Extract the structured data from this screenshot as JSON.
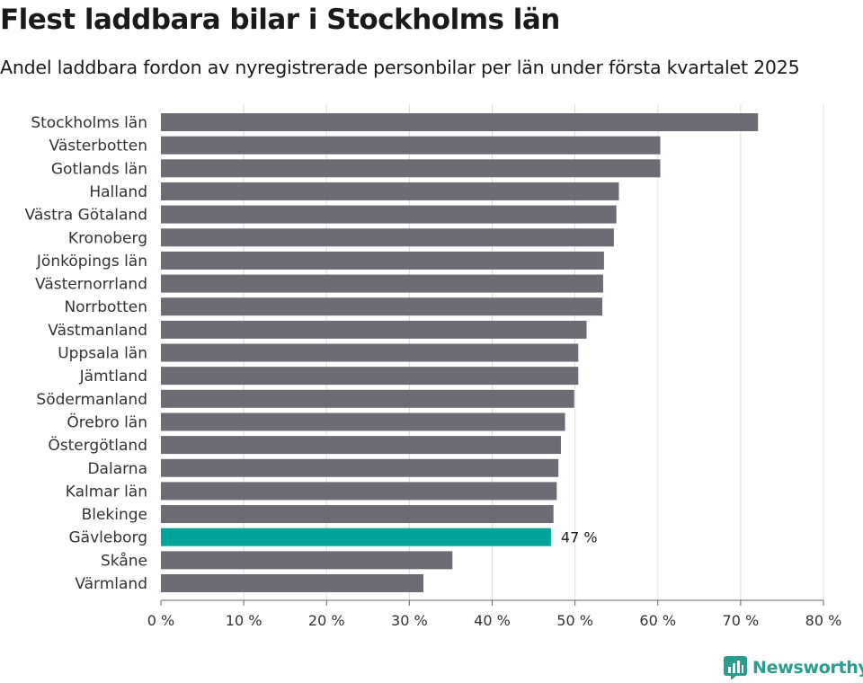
{
  "header": {
    "title": "Flest laddbara bilar i Stockholms län",
    "subtitle": "Andel laddbara fordon av nyregistrerade personbilar per län under första kvartalet 2025"
  },
  "brand": {
    "name": "Newsworthy",
    "color": "#2a9d8f",
    "icon": "newsworthy-chart-icon"
  },
  "chart_data": {
    "type": "bar",
    "orientation": "horizontal",
    "categories": [
      "Stockholms län",
      "Västerbotten",
      "Gotlands län",
      "Halland",
      "Västra Götaland",
      "Kronoberg",
      "Jönköpings län",
      "Västernorrland",
      "Norrbotten",
      "Västmanland",
      "Uppsala län",
      "Jämtland",
      "Södermanland",
      "Örebro län",
      "Östergötland",
      "Dalarna",
      "Kalmar län",
      "Blekinge",
      "Gävleborg",
      "Skåne",
      "Värmland"
    ],
    "values": [
      72.1,
      60.3,
      60.3,
      55.3,
      55.0,
      54.7,
      53.5,
      53.4,
      53.3,
      51.4,
      50.4,
      50.4,
      49.9,
      48.8,
      48.3,
      48.0,
      47.8,
      47.4,
      47.1,
      35.2,
      31.7
    ],
    "highlight": {
      "category": "Gävleborg",
      "label": "47 %"
    },
    "xlim": [
      0,
      80
    ],
    "xticks": [
      "0 %",
      "10 %",
      "20 %",
      "30 %",
      "40 %",
      "50 %",
      "60 %",
      "70 %",
      "80 %"
    ],
    "grid": true,
    "colors": {
      "bar": "#6d6b73",
      "highlight": "#00a49a",
      "grid": "#dddddd",
      "axis": "#666666"
    }
  }
}
